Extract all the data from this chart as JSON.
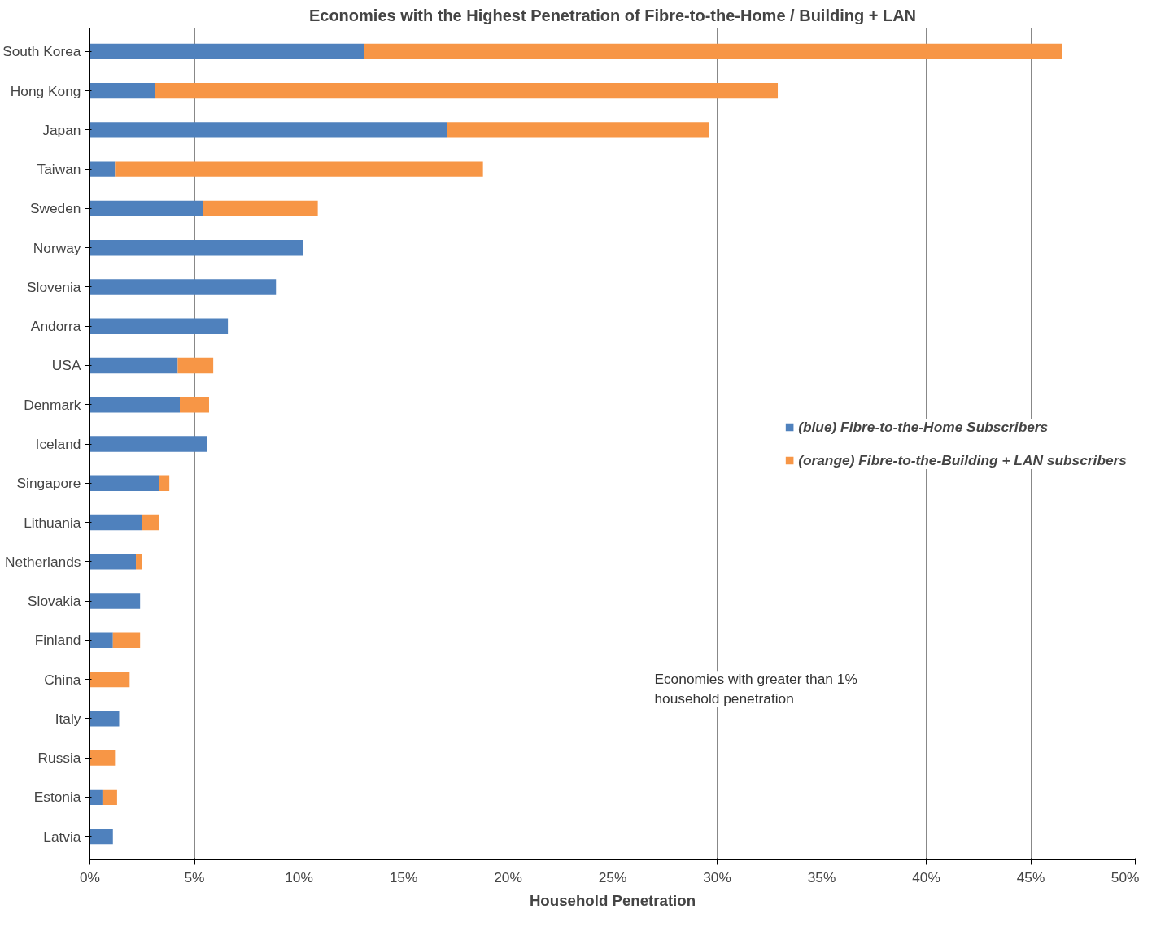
{
  "chart_data": {
    "type": "bar",
    "orientation": "horizontal",
    "stacked": true,
    "title": "Economies with the Highest Penetration of Fibre-to-the-Home / Building + LAN",
    "xlabel": "Household Penetration",
    "categories": [
      "South Korea",
      "Hong Kong",
      "Japan",
      "Taiwan",
      "Sweden",
      "Norway",
      "Slovenia",
      "Andorra",
      "USA",
      "Denmark",
      "Iceland",
      "Singapore",
      "Lithuania",
      "Netherlands",
      "Slovakia",
      "Finland",
      "China",
      "Italy",
      "Russia",
      "Estonia",
      "Latvia"
    ],
    "series": [
      {
        "name": "(blue) Fibre-to-the-Home Subscribers",
        "color": "#4f81bd",
        "values": [
          13.1,
          3.1,
          17.1,
          1.2,
          5.4,
          10.2,
          8.9,
          6.6,
          4.2,
          4.3,
          5.6,
          3.3,
          2.5,
          2.2,
          2.4,
          1.1,
          0,
          1.4,
          0,
          0.6,
          1.1
        ]
      },
      {
        "name": "(orange) Fibre-to-the-Building + LAN subscribers",
        "color": "#f79646",
        "values": [
          33.4,
          29.8,
          12.5,
          17.6,
          5.5,
          0,
          0,
          0,
          1.7,
          1.4,
          0,
          0.5,
          0.8,
          0.3,
          0,
          1.3,
          1.9,
          0,
          1.2,
          0.7,
          0
        ]
      }
    ],
    "xlim": [
      0,
      50
    ],
    "xticks": [
      {
        "value": 0,
        "label": "0%"
      },
      {
        "value": 5,
        "label": "5%"
      },
      {
        "value": 10,
        "label": "10%"
      },
      {
        "value": 15,
        "label": "15%"
      },
      {
        "value": 20,
        "label": "20%"
      },
      {
        "value": 25,
        "label": "25%"
      },
      {
        "value": 30,
        "label": "30%"
      },
      {
        "value": 35,
        "label": "35%"
      },
      {
        "value": 40,
        "label": "40%"
      },
      {
        "value": 45,
        "label": "45%"
      },
      {
        "value": 50,
        "label": "50%"
      }
    ],
    "grid": "x",
    "legend": "right",
    "annotations": [
      "Economies with greater than 1%\nhousehold penetration"
    ]
  }
}
